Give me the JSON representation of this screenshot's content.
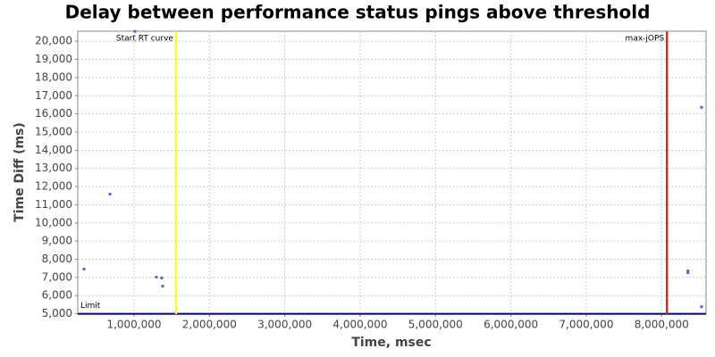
{
  "chart_data": {
    "type": "scatter",
    "title": "Delay between performance status pings above threshold",
    "x_label": "Time, msec",
    "y_label": "Time Diff (ms)",
    "x": [
      336000,
      680000,
      1012000,
      1296000,
      1367000,
      1380000,
      8350000,
      8350000,
      8530000,
      8530000
    ],
    "values": [
      7460,
      11590,
      20540,
      7020,
      6970,
      6520,
      7360,
      7260,
      16360,
      5390
    ],
    "color": "#6a5acd",
    "xlim": [
      253000,
      8590000
    ],
    "xticks": [
      {
        "value": 1000000,
        "label": "1,000,000"
      },
      {
        "value": 2000000,
        "label": "2,000,000"
      },
      {
        "value": 3000000,
        "label": "3,000,000"
      },
      {
        "value": 4000000,
        "label": "4,000,000"
      },
      {
        "value": 5000000,
        "label": "5,000,000"
      },
      {
        "value": 6000000,
        "label": "6,000,000"
      },
      {
        "value": 7000000,
        "label": "7,000,000"
      },
      {
        "value": 8000000,
        "label": "8,000,000"
      }
    ],
    "ylim": [
      4980,
      20550
    ],
    "yticks": [
      {
        "value": 5000,
        "label": "5,000"
      },
      {
        "value": 6000,
        "label": "6,000"
      },
      {
        "value": 7000,
        "label": "7,000"
      },
      {
        "value": 8000,
        "label": "8,000"
      },
      {
        "value": 9000,
        "label": "9,000"
      },
      {
        "value": 10000,
        "label": "10,000"
      },
      {
        "value": 11000,
        "label": "11,000"
      },
      {
        "value": 12000,
        "label": "12,000"
      },
      {
        "value": 13000,
        "label": "13,000"
      },
      {
        "value": 14000,
        "label": "14,000"
      },
      {
        "value": 15000,
        "label": "15,000"
      },
      {
        "value": 16000,
        "label": "16,000"
      },
      {
        "value": 17000,
        "label": "17,000"
      },
      {
        "value": 18000,
        "label": "18,000"
      },
      {
        "value": 19000,
        "label": "19,000"
      },
      {
        "value": 20000,
        "label": "20,000"
      }
    ],
    "grid": true,
    "x_markers": [
      {
        "label": "Start RT curve",
        "value": 1557000,
        "color": "#ffff00"
      },
      {
        "label": "max-jOPS",
        "value": 8070000,
        "color": "#ff0000"
      }
    ],
    "y_markers": [
      {
        "label": "Limit",
        "value": 5000,
        "color": "#000080"
      }
    ]
  }
}
